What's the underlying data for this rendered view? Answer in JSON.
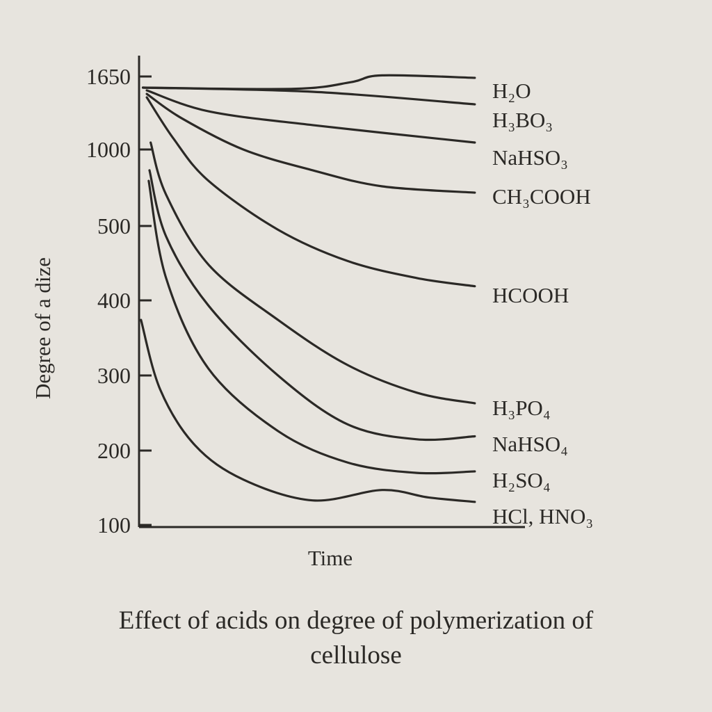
{
  "chart_data": {
    "type": "line",
    "title": "Effect of acids on degree of polymerization of cellulose",
    "xlabel": "Time",
    "ylabel": "Degree of a dize",
    "yticks": [
      1650,
      1000,
      500,
      400,
      300,
      200,
      100
    ],
    "ytick_labels": [
      "1650",
      "1000",
      "500",
      "400",
      "300",
      "200",
      "100"
    ],
    "y_scale": "non-linear (equally spaced ticks)",
    "xlim": [
      0,
      10
    ],
    "grid": false,
    "legend": "labels at right end of each line",
    "series": [
      {
        "name": "H2O",
        "label": "H₂O",
        "points": [
          [
            0.1,
            1551
          ],
          [
            4,
            1540
          ],
          [
            5.5,
            1600
          ],
          [
            6.3,
            1660
          ],
          [
            8.7,
            1638
          ]
        ]
      },
      {
        "name": "H3BO3",
        "label": "H₃BO₃",
        "points": [
          [
            0.1,
            1551
          ],
          [
            4.5,
            1514
          ],
          [
            8.7,
            1402
          ]
        ]
      },
      {
        "name": "NaHSO3",
        "label": "NaHSO₃",
        "points": [
          [
            0.2,
            1526
          ],
          [
            1.8,
            1340
          ],
          [
            4.5,
            1217
          ],
          [
            8.7,
            1062
          ]
        ]
      },
      {
        "name": "CH3COOH",
        "label": "CH₃COOH",
        "points": [
          [
            0.2,
            1495
          ],
          [
            1.1,
            1279
          ],
          [
            2.7,
            1000
          ],
          [
            4.5,
            864
          ],
          [
            6.3,
            759
          ],
          [
            8.7,
            718
          ]
        ]
      },
      {
        "name": "HCOOH",
        "label": "HCOOH",
        "points": [
          [
            0.2,
            1464
          ],
          [
            0.9,
            1093
          ],
          [
            1.8,
            795
          ],
          [
            3.6,
            495
          ],
          [
            5.4,
            453
          ],
          [
            7.2,
            430
          ],
          [
            8.7,
            419
          ]
        ]
      },
      {
        "name": "H3PO4",
        "label": "H₃PO₄",
        "points": [
          [
            0.3,
            1062
          ],
          [
            0.7,
            705
          ],
          [
            1.8,
            448
          ],
          [
            3.6,
            374
          ],
          [
            5.4,
            314
          ],
          [
            7.2,
            277
          ],
          [
            8.7,
            263
          ]
        ]
      },
      {
        "name": "NaHSO4",
        "label": "NaHSO₄",
        "points": [
          [
            0.27,
            864
          ],
          [
            0.7,
            486
          ],
          [
            1.8,
            393
          ],
          [
            3.6,
            300
          ],
          [
            5.4,
            235
          ],
          [
            7.2,
            215
          ],
          [
            8.7,
            219
          ]
        ]
      },
      {
        "name": "H2SO4",
        "label": "H₂SO₄",
        "points": [
          [
            0.25,
            795
          ],
          [
            0.7,
            430
          ],
          [
            1.8,
            309
          ],
          [
            3.6,
            226
          ],
          [
            5.4,
            184
          ],
          [
            7.2,
            170
          ],
          [
            8.7,
            172
          ]
        ]
      },
      {
        "name": "HCl, HNO3",
        "label": "HCl,   HNO₃",
        "points": [
          [
            0.05,
            374
          ],
          [
            0.55,
            281
          ],
          [
            1.45,
            207
          ],
          [
            2.7,
            161
          ],
          [
            4.5,
            133
          ],
          [
            6.3,
            147
          ],
          [
            7.5,
            137
          ],
          [
            8.7,
            131
          ]
        ]
      }
    ]
  }
}
